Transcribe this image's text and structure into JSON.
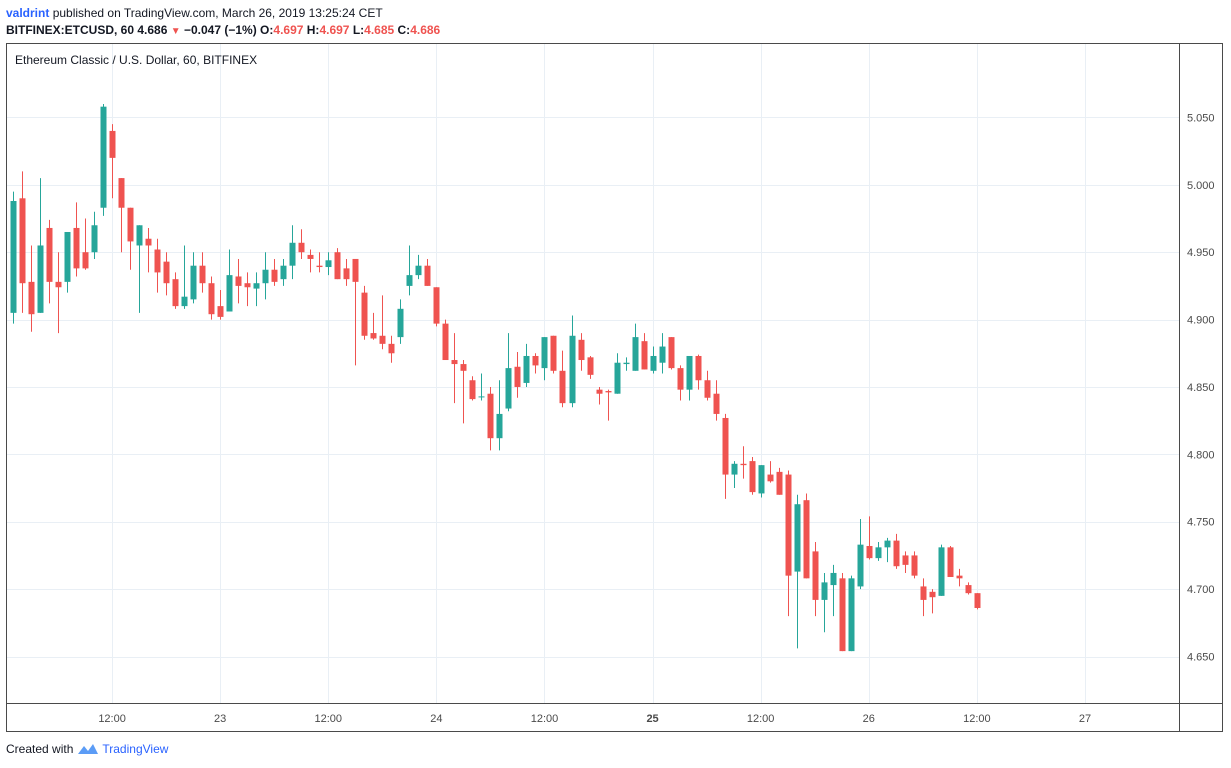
{
  "header": {
    "author": "valdrint",
    "published_text": "published on TradingView.com, March 26, 2019 13:25:24 CET",
    "symbol_line": "BITFINEX:ETCUSD, 60",
    "last_price": "4.686",
    "change_arrow": "▼",
    "change": "−0.047 (−1%)",
    "open_label": "O:",
    "open": "4.697",
    "high_label": "H:",
    "high": "4.697",
    "low_label": "L:",
    "low": "4.685",
    "close_label": "C:",
    "close": "4.686"
  },
  "footer": {
    "created_with": "Created with",
    "brand": "TradingView"
  },
  "colors": {
    "up": "#26a69a",
    "down": "#ef5350",
    "grid": "#e9eff5",
    "axis_text": "#4a4a4a",
    "border": "#4a4a4a"
  },
  "chart_data": {
    "type": "candlestick",
    "title": "Ethereum Classic / U.S. Dollar, 60, BITFINEX",
    "y_ticks": [
      "5.050",
      "5.000",
      "4.950",
      "4.900",
      "4.850",
      "4.800",
      "4.750",
      "4.700",
      "4.650"
    ],
    "y_tick_values": [
      5.05,
      5.0,
      4.95,
      4.9,
      4.85,
      4.8,
      4.75,
      4.7,
      4.65
    ],
    "ylim": [
      4.6155,
      5.1045
    ],
    "x_ticks": [
      "12:00",
      "23",
      "12:00",
      "24",
      "12:00",
      "25",
      "12:00",
      "26",
      "12:00",
      "27"
    ],
    "x_tick_bold": [
      false,
      false,
      false,
      false,
      false,
      true,
      false,
      false,
      false,
      false
    ],
    "x_tick_hours": [
      12,
      24,
      36,
      48,
      60,
      72,
      84,
      96,
      108,
      120
    ],
    "x_range_hours": [
      1,
      125
    ],
    "candles": [
      {
        "o": 4.905,
        "h": 4.995,
        "l": 4.897,
        "c": 4.988
      },
      {
        "o": 4.99,
        "h": 5.01,
        "l": 4.905,
        "c": 4.927
      },
      {
        "o": 4.928,
        "h": 4.955,
        "l": 4.891,
        "c": 4.904
      },
      {
        "o": 4.905,
        "h": 5.005,
        "l": 4.905,
        "c": 4.955
      },
      {
        "o": 4.968,
        "h": 4.974,
        "l": 4.912,
        "c": 4.928
      },
      {
        "o": 4.928,
        "h": 4.95,
        "l": 4.89,
        "c": 4.924
      },
      {
        "o": 4.928,
        "h": 4.965,
        "l": 4.92,
        "c": 4.965
      },
      {
        "o": 4.968,
        "h": 4.987,
        "l": 4.932,
        "c": 4.938
      },
      {
        "o": 4.95,
        "h": 4.975,
        "l": 4.937,
        "c": 4.938
      },
      {
        "o": 4.95,
        "h": 4.98,
        "l": 4.945,
        "c": 4.97
      },
      {
        "o": 4.983,
        "h": 5.06,
        "l": 4.977,
        "c": 5.058
      },
      {
        "o": 5.04,
        "h": 5.045,
        "l": 4.99,
        "c": 5.02
      },
      {
        "o": 5.005,
        "h": 5.005,
        "l": 4.95,
        "c": 4.983
      },
      {
        "o": 4.983,
        "h": 4.983,
        "l": 4.937,
        "c": 4.958
      },
      {
        "o": 4.955,
        "h": 4.97,
        "l": 4.905,
        "c": 4.97
      },
      {
        "o": 4.96,
        "h": 4.968,
        "l": 4.935,
        "c": 4.955
      },
      {
        "o": 4.952,
        "h": 4.96,
        "l": 4.92,
        "c": 4.935
      },
      {
        "o": 4.943,
        "h": 4.95,
        "l": 4.918,
        "c": 4.927
      },
      {
        "o": 4.93,
        "h": 4.935,
        "l": 4.908,
        "c": 4.91
      },
      {
        "o": 4.91,
        "h": 4.955,
        "l": 4.908,
        "c": 4.917
      },
      {
        "o": 4.915,
        "h": 4.95,
        "l": 4.912,
        "c": 4.94
      },
      {
        "o": 4.94,
        "h": 4.95,
        "l": 4.92,
        "c": 4.927
      },
      {
        "o": 4.927,
        "h": 4.932,
        "l": 4.9,
        "c": 4.904
      },
      {
        "o": 4.91,
        "h": 4.922,
        "l": 4.9,
        "c": 4.902
      },
      {
        "o": 4.906,
        "h": 4.952,
        "l": 4.906,
        "c": 4.933
      },
      {
        "o": 4.932,
        "h": 4.945,
        "l": 4.912,
        "c": 4.925
      },
      {
        "o": 4.927,
        "h": 4.935,
        "l": 4.91,
        "c": 4.924
      },
      {
        "o": 4.923,
        "h": 4.935,
        "l": 4.91,
        "c": 4.927
      },
      {
        "o": 4.927,
        "h": 4.95,
        "l": 4.915,
        "c": 4.937
      },
      {
        "o": 4.937,
        "h": 4.945,
        "l": 4.925,
        "c": 4.928
      },
      {
        "o": 4.93,
        "h": 4.945,
        "l": 4.925,
        "c": 4.94
      },
      {
        "o": 4.94,
        "h": 4.97,
        "l": 4.93,
        "c": 4.957
      },
      {
        "o": 4.957,
        "h": 4.967,
        "l": 4.945,
        "c": 4.95
      },
      {
        "o": 4.948,
        "h": 4.952,
        "l": 4.935,
        "c": 4.945
      },
      {
        "o": 4.94,
        "h": 4.95,
        "l": 4.935,
        "c": 4.939
      },
      {
        "o": 4.939,
        "h": 4.95,
        "l": 4.933,
        "c": 4.944
      },
      {
        "o": 4.95,
        "h": 4.953,
        "l": 4.93,
        "c": 4.93
      },
      {
        "o": 4.938,
        "h": 4.945,
        "l": 4.925,
        "c": 4.93
      },
      {
        "o": 4.945,
        "h": 4.945,
        "l": 4.866,
        "c": 4.928
      },
      {
        "o": 4.92,
        "h": 4.925,
        "l": 4.885,
        "c": 4.888
      },
      {
        "o": 4.89,
        "h": 4.905,
        "l": 4.885,
        "c": 4.886
      },
      {
        "o": 4.888,
        "h": 4.918,
        "l": 4.878,
        "c": 4.882
      },
      {
        "o": 4.882,
        "h": 4.888,
        "l": 4.868,
        "c": 4.875
      },
      {
        "o": 4.887,
        "h": 4.915,
        "l": 4.882,
        "c": 4.908
      },
      {
        "o": 4.925,
        "h": 4.955,
        "l": 4.918,
        "c": 4.933
      },
      {
        "o": 4.933,
        "h": 4.948,
        "l": 4.93,
        "c": 4.94
      },
      {
        "o": 4.94,
        "h": 4.945,
        "l": 4.925,
        "c": 4.925
      },
      {
        "o": 4.924,
        "h": 4.924,
        "l": 4.895,
        "c": 4.897
      },
      {
        "o": 4.897,
        "h": 4.9,
        "l": 4.87,
        "c": 4.87
      },
      {
        "o": 4.87,
        "h": 4.89,
        "l": 4.838,
        "c": 4.867
      },
      {
        "o": 4.867,
        "h": 4.87,
        "l": 4.823,
        "c": 4.862
      },
      {
        "o": 4.855,
        "h": 4.858,
        "l": 4.84,
        "c": 4.841
      },
      {
        "o": 4.843,
        "h": 4.86,
        "l": 4.84,
        "c": 4.843
      },
      {
        "o": 4.845,
        "h": 4.85,
        "l": 4.803,
        "c": 4.812
      },
      {
        "o": 4.812,
        "h": 4.855,
        "l": 4.803,
        "c": 4.83
      },
      {
        "o": 4.834,
        "h": 4.89,
        "l": 4.832,
        "c": 4.864
      },
      {
        "o": 4.865,
        "h": 4.876,
        "l": 4.842,
        "c": 4.85
      },
      {
        "o": 4.853,
        "h": 4.882,
        "l": 4.85,
        "c": 4.873
      },
      {
        "o": 4.873,
        "h": 4.875,
        "l": 4.86,
        "c": 4.866
      },
      {
        "o": 4.864,
        "h": 4.887,
        "l": 4.855,
        "c": 4.887
      },
      {
        "o": 4.888,
        "h": 4.888,
        "l": 4.86,
        "c": 4.862
      },
      {
        "o": 4.862,
        "h": 4.877,
        "l": 4.835,
        "c": 4.838
      },
      {
        "o": 4.838,
        "h": 4.903,
        "l": 4.835,
        "c": 4.888
      },
      {
        "o": 4.885,
        "h": 4.89,
        "l": 4.862,
        "c": 4.87
      },
      {
        "o": 4.872,
        "h": 4.873,
        "l": 4.856,
        "c": 4.859
      },
      {
        "o": 4.848,
        "h": 4.85,
        "l": 4.837,
        "c": 4.845
      },
      {
        "o": 4.847,
        "h": 4.848,
        "l": 4.825,
        "c": 4.846
      },
      {
        "o": 4.845,
        "h": 4.875,
        "l": 4.845,
        "c": 4.868
      },
      {
        "o": 4.867,
        "h": 4.872,
        "l": 4.862,
        "c": 4.868
      },
      {
        "o": 4.862,
        "h": 4.897,
        "l": 4.862,
        "c": 4.887
      },
      {
        "o": 4.884,
        "h": 4.89,
        "l": 4.863,
        "c": 4.863
      },
      {
        "o": 4.862,
        "h": 4.88,
        "l": 4.86,
        "c": 4.873
      },
      {
        "o": 4.868,
        "h": 4.89,
        "l": 4.86,
        "c": 4.88
      },
      {
        "o": 4.887,
        "h": 4.887,
        "l": 4.863,
        "c": 4.864
      },
      {
        "o": 4.864,
        "h": 4.866,
        "l": 4.84,
        "c": 4.848
      },
      {
        "o": 4.848,
        "h": 4.873,
        "l": 4.84,
        "c": 4.873
      },
      {
        "o": 4.873,
        "h": 4.874,
        "l": 4.848,
        "c": 4.855
      },
      {
        "o": 4.855,
        "h": 4.862,
        "l": 4.84,
        "c": 4.842
      },
      {
        "o": 4.845,
        "h": 4.855,
        "l": 4.825,
        "c": 4.83
      },
      {
        "o": 4.827,
        "h": 4.83,
        "l": 4.767,
        "c": 4.785
      },
      {
        "o": 4.785,
        "h": 4.795,
        "l": 4.775,
        "c": 4.793
      },
      {
        "o": 4.793,
        "h": 4.806,
        "l": 4.782,
        "c": 4.792
      },
      {
        "o": 4.795,
        "h": 4.798,
        "l": 4.77,
        "c": 4.772
      },
      {
        "o": 4.771,
        "h": 4.792,
        "l": 4.768,
        "c": 4.792
      },
      {
        "o": 4.785,
        "h": 4.795,
        "l": 4.779,
        "c": 4.78
      },
      {
        "o": 4.787,
        "h": 4.79,
        "l": 4.77,
        "c": 4.77
      },
      {
        "o": 4.785,
        "h": 4.788,
        "l": 4.68,
        "c": 4.71
      },
      {
        "o": 4.713,
        "h": 4.77,
        "l": 4.656,
        "c": 4.763
      },
      {
        "o": 4.766,
        "h": 4.771,
        "l": 4.708,
        "c": 4.708
      },
      {
        "o": 4.728,
        "h": 4.735,
        "l": 4.68,
        "c": 4.692
      },
      {
        "o": 4.692,
        "h": 4.712,
        "l": 4.668,
        "c": 4.705
      },
      {
        "o": 4.703,
        "h": 4.718,
        "l": 4.68,
        "c": 4.712
      },
      {
        "o": 4.708,
        "h": 4.712,
        "l": 4.654,
        "c": 4.654
      },
      {
        "o": 4.654,
        "h": 4.71,
        "l": 4.654,
        "c": 4.708
      },
      {
        "o": 4.702,
        "h": 4.752,
        "l": 4.7,
        "c": 4.733
      },
      {
        "o": 4.732,
        "h": 4.754,
        "l": 4.722,
        "c": 4.723
      },
      {
        "o": 4.723,
        "h": 4.735,
        "l": 4.721,
        "c": 4.731
      },
      {
        "o": 4.731,
        "h": 4.738,
        "l": 4.72,
        "c": 4.736
      },
      {
        "o": 4.736,
        "h": 4.741,
        "l": 4.715,
        "c": 4.717
      },
      {
        "o": 4.725,
        "h": 4.728,
        "l": 4.712,
        "c": 4.718
      },
      {
        "o": 4.725,
        "h": 4.728,
        "l": 4.708,
        "c": 4.71
      },
      {
        "o": 4.702,
        "h": 4.708,
        "l": 4.68,
        "c": 4.692
      },
      {
        "o": 4.698,
        "h": 4.7,
        "l": 4.682,
        "c": 4.694
      },
      {
        "o": 4.695,
        "h": 4.733,
        "l": 4.695,
        "c": 4.731
      },
      {
        "o": 4.731,
        "h": 4.732,
        "l": 4.709,
        "c": 4.709
      },
      {
        "o": 4.71,
        "h": 4.715,
        "l": 4.702,
        "c": 4.708
      },
      {
        "o": 4.703,
        "h": 4.705,
        "l": 4.696,
        "c": 4.697
      },
      {
        "o": 4.697,
        "h": 4.697,
        "l": 4.685,
        "c": 4.686
      }
    ]
  }
}
